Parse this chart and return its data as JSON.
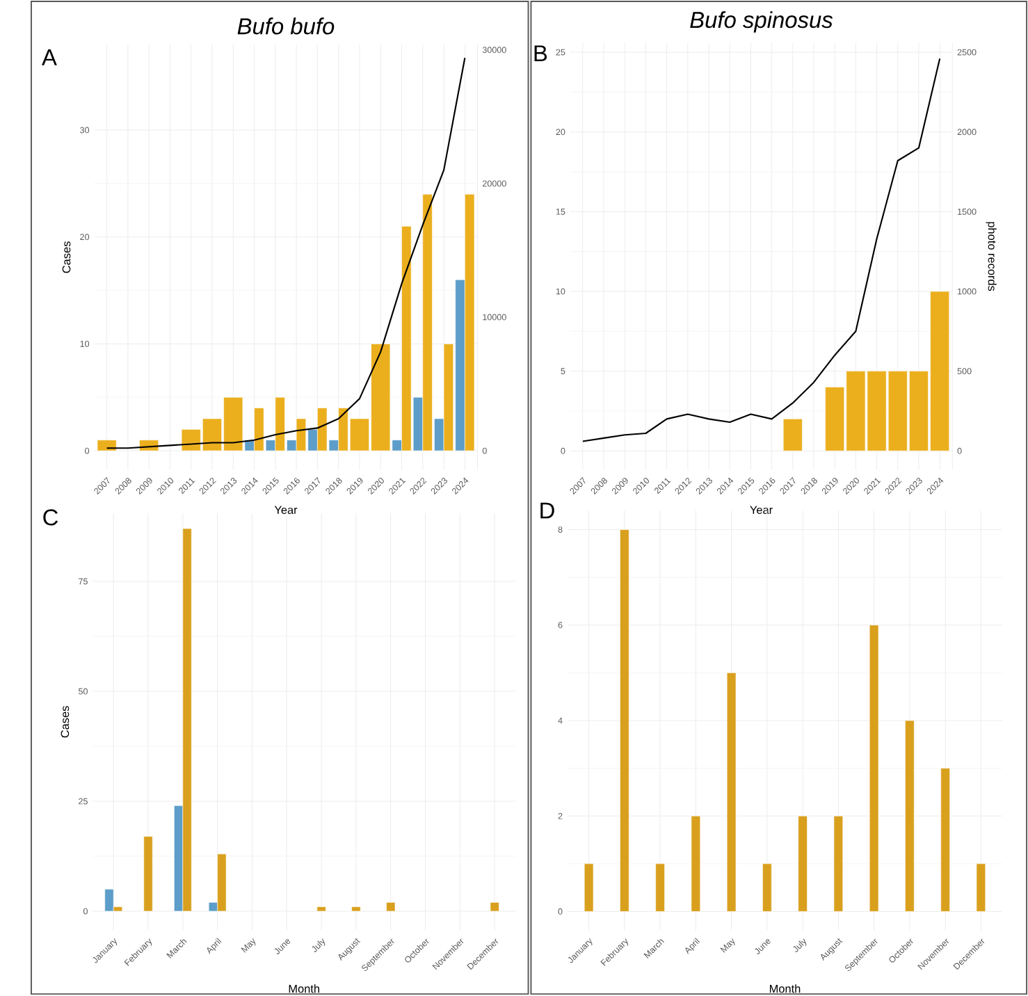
{
  "chart_data": [
    {
      "type": "bar",
      "title": "Bufo bufo",
      "xlabel": "Year",
      "ylabel": "Cases",
      "annotations": [
        "A"
      ],
      "grid": true,
      "categories": [
        "2007",
        "2008",
        "2009",
        "2010",
        "2011",
        "2012",
        "2013",
        "2014",
        "2015",
        "2016",
        "2017",
        "2018",
        "2019",
        "2020",
        "2021",
        "2022",
        "2023",
        "2024"
      ],
      "series": [
        {
          "color": "#5d9dc9",
          "values": [
            null,
            null,
            null,
            null,
            null,
            null,
            null,
            1,
            1,
            1,
            2,
            1,
            null,
            null,
            1,
            5,
            3,
            16
          ]
        },
        {
          "color": "#ebaf1e",
          "values": [
            1,
            null,
            1,
            null,
            2,
            3,
            5,
            4,
            5,
            3,
            4,
            4,
            3,
            10,
            21,
            24,
            10,
            24
          ]
        },
        {
          "type": "line",
          "axis": "y2",
          "color": "#000000",
          "values": [
            200,
            200,
            300,
            400,
            500,
            600,
            600,
            800,
            1200,
            1500,
            1700,
            2400,
            3900,
            7400,
            12500,
            16900,
            21000,
            29400
          ]
        }
      ],
      "ylim": [
        -1.8,
        38
      ],
      "yticks": [
        0,
        10,
        20,
        30
      ],
      "y2lim": [
        -1440,
        30400
      ],
      "y2ticks": [
        0,
        10000,
        20000,
        30000
      ]
    },
    {
      "type": "bar",
      "title": "Bufo spinosus",
      "xlabel": "Year",
      "y2label": "photo records",
      "annotations": [
        "B"
      ],
      "grid": true,
      "categories": [
        "2007",
        "2008",
        "2009",
        "2010",
        "2011",
        "2012",
        "2013",
        "2014",
        "2015",
        "2016",
        "2017",
        "2018",
        "2019",
        "2020",
        "2021",
        "2022",
        "2023",
        "2024"
      ],
      "series": [
        {
          "color": "#ebaf1e",
          "values": [
            null,
            null,
            null,
            null,
            null,
            null,
            null,
            null,
            null,
            null,
            2,
            null,
            4,
            5,
            5,
            5,
            5,
            10
          ]
        },
        {
          "type": "line",
          "axis": "y2",
          "color": "#000000",
          "values": [
            60,
            80,
            100,
            110,
            200,
            230,
            200,
            180,
            230,
            200,
            300,
            430,
            600,
            750,
            1330,
            1820,
            1900,
            2460
          ]
        }
      ],
      "ylim": [
        -1.2,
        25.6
      ],
      "yticks": [
        0,
        5,
        10,
        15,
        20,
        25
      ],
      "y2lim": [
        -120,
        2560
      ],
      "y2ticks": [
        0,
        500,
        1000,
        1500,
        2000,
        2500
      ]
    },
    {
      "type": "bar",
      "xlabel": "Month",
      "ylabel": "Cases",
      "annotations": [
        "C"
      ],
      "grid": true,
      "categories": [
        "January",
        "February",
        "March",
        "April",
        "May",
        "June",
        "July",
        "August",
        "September",
        "October",
        "November",
        "December"
      ],
      "series": [
        {
          "color": "#5d9dc9",
          "values": [
            5,
            null,
            24,
            2,
            null,
            null,
            null,
            null,
            null,
            null,
            null,
            null
          ]
        },
        {
          "color": "#d9a01e",
          "values": [
            1,
            17,
            87,
            13,
            null,
            null,
            1,
            1,
            2,
            null,
            null,
            2
          ]
        }
      ],
      "ylim": [
        -4.4,
        90.5
      ],
      "yticks": [
        0,
        25,
        50,
        75
      ]
    },
    {
      "type": "bar",
      "xlabel": "Month",
      "annotations": [
        "D"
      ],
      "grid": true,
      "categories": [
        "January",
        "February",
        "March",
        "April",
        "May",
        "June",
        "July",
        "August",
        "September",
        "October",
        "November",
        "December"
      ],
      "series": [
        {
          "color": "#d9a01e",
          "values": [
            1,
            8,
            1,
            2,
            5,
            1,
            2,
            2,
            6,
            4,
            3,
            1
          ]
        }
      ],
      "ylim": [
        -0.4,
        8.4
      ],
      "yticks": [
        0,
        2,
        4,
        6,
        8
      ]
    }
  ]
}
